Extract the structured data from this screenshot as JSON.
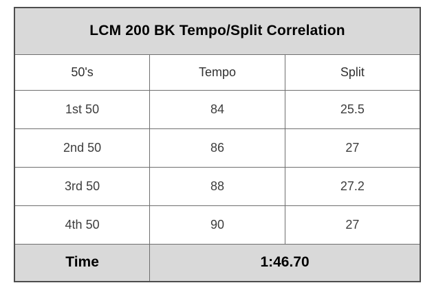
{
  "table": {
    "title": "LCM 200 BK Tempo/Split Correlation",
    "columns": [
      "50's",
      "Tempo",
      "Split"
    ],
    "rows": [
      {
        "label": "1st 50",
        "tempo": "84",
        "split": "25.5"
      },
      {
        "label": "2nd 50",
        "tempo": "86",
        "split": "27"
      },
      {
        "label": "3rd 50",
        "tempo": "88",
        "split": "27.2"
      },
      {
        "label": "4th 50",
        "tempo": "90",
        "split": "27"
      }
    ],
    "footer": {
      "label": "Time",
      "value": "1:46.70"
    }
  },
  "colors": {
    "title_bg": "#d9d9d9",
    "footer_bg": "#d9d9d9",
    "border_inner": "#6e6e6e",
    "border_outer": "#4d4d4d",
    "title_text": "#000000",
    "header_text": "#303030",
    "data_text": "#3d3d3d",
    "canvas_bg": "#ffffff"
  }
}
